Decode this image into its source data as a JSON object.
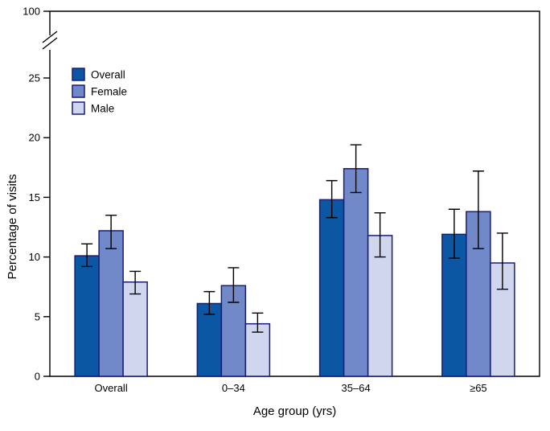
{
  "figure": {
    "background": "#ffffff"
  },
  "chart_data": {
    "type": "bar",
    "title": "",
    "xlabel": "Age group (yrs)",
    "ylabel": "Percentage of visits",
    "categories": [
      "Overall",
      "0–34",
      "35–64",
      "≥65"
    ],
    "series": [
      {
        "name": "Overall",
        "color": "#0b57a4",
        "values": [
          10.1,
          6.1,
          14.8,
          11.9
        ],
        "err_low": [
          9.2,
          5.2,
          13.3,
          9.9
        ],
        "err_high": [
          11.1,
          7.1,
          16.4,
          14.0
        ]
      },
      {
        "name": "Female",
        "color": "#7289c9",
        "values": [
          12.2,
          7.6,
          17.4,
          13.8
        ],
        "err_low": [
          10.7,
          6.2,
          15.4,
          10.7
        ],
        "err_high": [
          13.5,
          9.1,
          19.4,
          17.2
        ]
      },
      {
        "name": "Male",
        "color": "#cfd6ee",
        "values": [
          7.9,
          4.4,
          11.8,
          9.5
        ],
        "err_low": [
          6.9,
          3.7,
          10.0,
          7.3
        ],
        "err_high": [
          8.8,
          5.3,
          13.7,
          12.0
        ]
      }
    ],
    "y_axis": {
      "ticks": [
        0,
        5,
        10,
        15,
        20,
        25
      ],
      "break_label": "100",
      "axis_break": true,
      "max_drawn": 25
    },
    "legend_position": "top-left",
    "legend_labels": [
      "Overall",
      "Female",
      "Male"
    ],
    "bar_outline": "#1b1b78",
    "error_bar_color": "#000000",
    "axis_color": "#000000",
    "grid": false
  }
}
